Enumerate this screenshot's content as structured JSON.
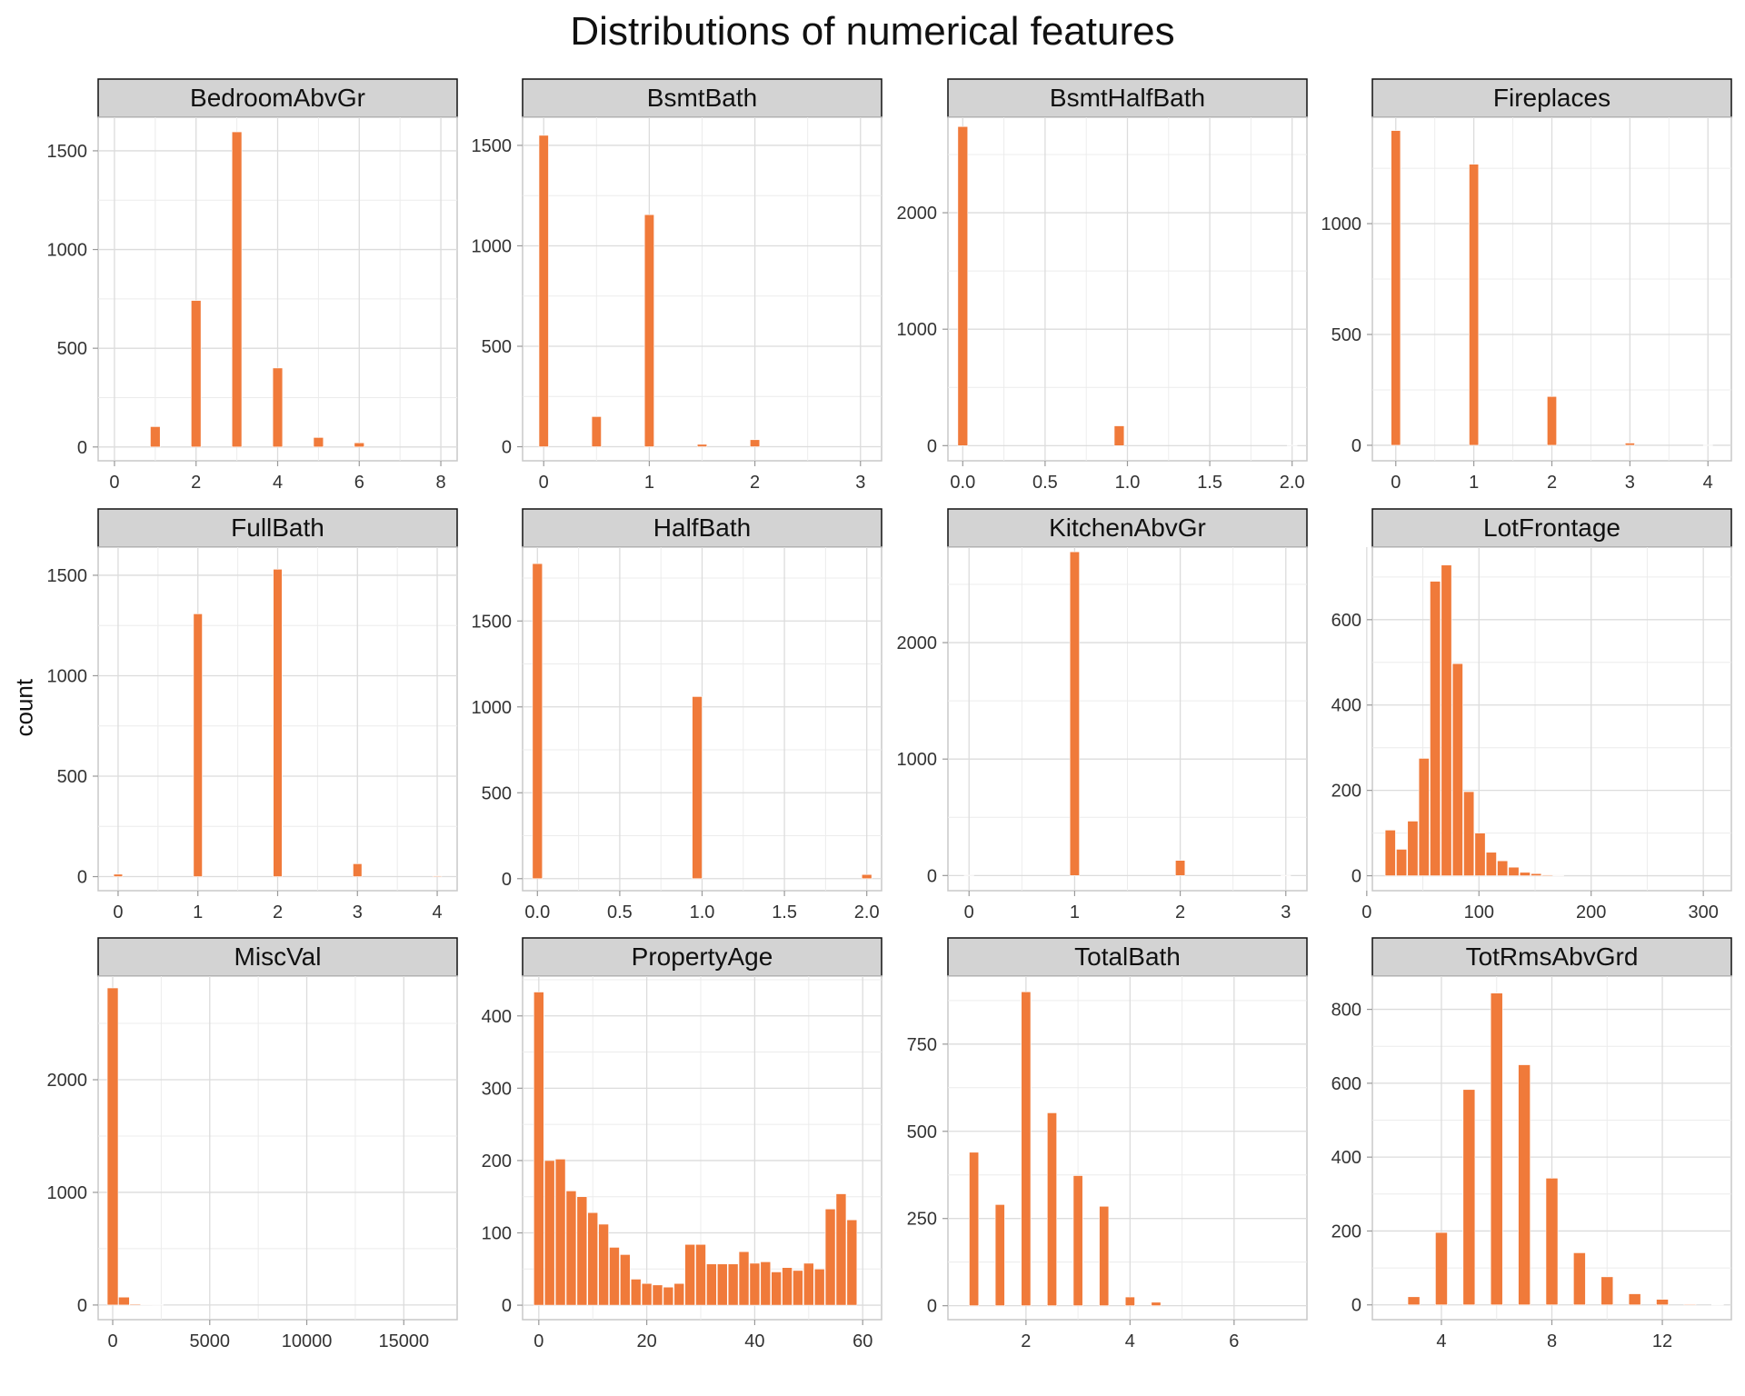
{
  "chart_data": {
    "type": "bar",
    "title": "Distributions of numerical features",
    "ylabel": "count",
    "color": "#f07a3a",
    "panels": [
      {
        "name": "BedroomAbvGr",
        "xlim": [
          -0.4,
          8.4
        ],
        "ylim": [
          -70,
          1670
        ],
        "xticks": [
          "0",
          "2",
          "4",
          "6",
          "8"
        ],
        "xtickvals": [
          0,
          2,
          4,
          6,
          8
        ],
        "yticks": [
          0,
          500,
          1000,
          1500
        ],
        "barwidth": 0.24,
        "bars": [
          {
            "x": 1,
            "y": 103
          },
          {
            "x": 2,
            "y": 742
          },
          {
            "x": 3,
            "y": 1596
          },
          {
            "x": 4,
            "y": 400
          },
          {
            "x": 5,
            "y": 48
          },
          {
            "x": 6,
            "y": 21
          }
        ]
      },
      {
        "name": "BsmtBath",
        "xlim": [
          -0.2,
          3.2
        ],
        "ylim": [
          -70,
          1640
        ],
        "xticks": [
          "0",
          "1",
          "2",
          "3"
        ],
        "xtickvals": [
          0,
          1,
          2,
          3
        ],
        "yticks": [
          0,
          500,
          1000,
          1500
        ],
        "barwidth": 0.09,
        "bars": [
          {
            "x": 0,
            "y": 1550
          },
          {
            "x": 0.5,
            "y": 150
          },
          {
            "x": 1,
            "y": 1155
          },
          {
            "x": 1.5,
            "y": 12
          },
          {
            "x": 2,
            "y": 35
          }
        ]
      },
      {
        "name": "BsmtHalfBath",
        "xlim": [
          -0.09,
          2.09
        ],
        "ylim": [
          -130,
          2820
        ],
        "xticks": [
          "0.0",
          "0.5",
          "1.0",
          "1.5",
          "2.0"
        ],
        "xtickvals": [
          0,
          0.5,
          1,
          1.5,
          2
        ],
        "yticks": [
          0,
          1000,
          2000
        ],
        "barwidth": 0.06,
        "bars": [
          {
            "x": 0,
            "y": 2740
          },
          {
            "x": 0.95,
            "y": 170
          },
          {
            "x": 2,
            "y": 4
          }
        ]
      },
      {
        "name": "Fireplaces",
        "xlim": [
          -0.3,
          4.3
        ],
        "ylim": [
          -70,
          1480
        ],
        "xticks": [
          "0",
          "1",
          "2",
          "3",
          "4"
        ],
        "xtickvals": [
          0,
          1,
          2,
          3,
          4
        ],
        "yticks": [
          0,
          500,
          1000
        ],
        "barwidth": 0.12,
        "bars": [
          {
            "x": 0,
            "y": 1420
          },
          {
            "x": 1,
            "y": 1268
          },
          {
            "x": 2,
            "y": 220
          },
          {
            "x": 3,
            "y": 10
          },
          {
            "x": 4,
            "y": 1
          }
        ]
      },
      {
        "name": "FullBath",
        "xlim": [
          -0.25,
          4.25
        ],
        "ylim": [
          -70,
          1640
        ],
        "xticks": [
          "0",
          "1",
          "2",
          "3",
          "4"
        ],
        "xtickvals": [
          0,
          1,
          2,
          3,
          4
        ],
        "yticks": [
          0,
          500,
          1000,
          1500
        ],
        "barwidth": 0.11,
        "bars": [
          {
            "x": 0,
            "y": 12
          },
          {
            "x": 1,
            "y": 1308
          },
          {
            "x": 2,
            "y": 1530
          },
          {
            "x": 3,
            "y": 64
          },
          {
            "x": 4,
            "y": 4
          }
        ]
      },
      {
        "name": "HalfBath",
        "xlim": [
          -0.09,
          2.09
        ],
        "ylim": [
          -70,
          1930
        ],
        "xticks": [
          "0.0",
          "0.5",
          "1.0",
          "1.5",
          "2.0"
        ],
        "xtickvals": [
          0,
          0.5,
          1,
          1.5,
          2
        ],
        "yticks": [
          0,
          500,
          1000,
          1500
        ],
        "barwidth": 0.06,
        "bars": [
          {
            "x": 0,
            "y": 1834
          },
          {
            "x": 0.97,
            "y": 1060
          },
          {
            "x": 2,
            "y": 24
          }
        ]
      },
      {
        "name": "KitchenAbvGr",
        "xlim": [
          -0.2,
          3.2
        ],
        "ylim": [
          -130,
          2820
        ],
        "xticks": [
          "0",
          "1",
          "2",
          "3"
        ],
        "xtickvals": [
          0,
          1,
          2,
          3
        ],
        "yticks": [
          0,
          1000,
          2000
        ],
        "barwidth": 0.09,
        "bars": [
          {
            "x": 0,
            "y": 3
          },
          {
            "x": 1,
            "y": 2780
          },
          {
            "x": 2,
            "y": 130
          },
          {
            "x": 3,
            "y": 2
          }
        ]
      },
      {
        "name": "LotFrontage",
        "xlim": [
          5,
          325
        ],
        "ylim": [
          -35,
          770
        ],
        "xticks": [
          "0",
          "100",
          "200",
          "300"
        ],
        "xtickvals": [
          0,
          100,
          200,
          300
        ],
        "yticks": [
          0,
          200,
          400,
          600
        ],
        "barwidth": 9.2,
        "bars": [
          {
            "x": 21,
            "y": 107
          },
          {
            "x": 31,
            "y": 62
          },
          {
            "x": 41,
            "y": 128
          },
          {
            "x": 51,
            "y": 275
          },
          {
            "x": 61,
            "y": 690
          },
          {
            "x": 71,
            "y": 728
          },
          {
            "x": 81,
            "y": 497
          },
          {
            "x": 91,
            "y": 197
          },
          {
            "x": 101,
            "y": 100
          },
          {
            "x": 111,
            "y": 55
          },
          {
            "x": 121,
            "y": 35
          },
          {
            "x": 131,
            "y": 20
          },
          {
            "x": 141,
            "y": 8
          },
          {
            "x": 151,
            "y": 5
          },
          {
            "x": 161,
            "y": 2
          },
          {
            "x": 171,
            "y": 1
          }
        ]
      },
      {
        "name": "MiscVal",
        "xlim": [
          -750,
          17750
        ],
        "ylim": [
          -130,
          2920
        ],
        "xticks": [
          "0",
          "5000",
          "10000",
          "15000"
        ],
        "xtickvals": [
          0,
          5000,
          10000,
          15000
        ],
        "yticks": [
          0,
          1000,
          2000
        ],
        "barwidth": 560,
        "bars": [
          {
            "x": 0,
            "y": 2815
          },
          {
            "x": 580,
            "y": 70
          },
          {
            "x": 1160,
            "y": 8
          },
          {
            "x": 1740,
            "y": 4
          },
          {
            "x": 2320,
            "y": 3
          }
        ]
      },
      {
        "name": "PropertyAge",
        "xlim": [
          -3,
          63.5
        ],
        "ylim": [
          -20,
          455
        ],
        "xticks": [
          "0",
          "20",
          "40",
          "60"
        ],
        "xtickvals": [
          0,
          20,
          40,
          60
        ],
        "yticks": [
          0,
          100,
          200,
          300,
          400
        ],
        "barwidth": 1.85,
        "bars": [
          {
            "x": 0,
            "y": 433
          },
          {
            "x": 2,
            "y": 200
          },
          {
            "x": 4,
            "y": 202
          },
          {
            "x": 6,
            "y": 158
          },
          {
            "x": 8,
            "y": 150
          },
          {
            "x": 10,
            "y": 128
          },
          {
            "x": 12,
            "y": 112
          },
          {
            "x": 14,
            "y": 80
          },
          {
            "x": 16,
            "y": 70
          },
          {
            "x": 18,
            "y": 36
          },
          {
            "x": 20,
            "y": 30
          },
          {
            "x": 22,
            "y": 28
          },
          {
            "x": 24,
            "y": 25
          },
          {
            "x": 26,
            "y": 30
          },
          {
            "x": 28,
            "y": 84
          },
          {
            "x": 30,
            "y": 84
          },
          {
            "x": 32,
            "y": 57
          },
          {
            "x": 34,
            "y": 57
          },
          {
            "x": 36,
            "y": 57
          },
          {
            "x": 38,
            "y": 74
          },
          {
            "x": 40,
            "y": 58
          },
          {
            "x": 42,
            "y": 60
          },
          {
            "x": 44,
            "y": 46
          },
          {
            "x": 46,
            "y": 52
          },
          {
            "x": 48,
            "y": 48
          },
          {
            "x": 50,
            "y": 58
          },
          {
            "x": 52,
            "y": 50
          },
          {
            "x": 54,
            "y": 133
          },
          {
            "x": 56,
            "y": 154
          },
          {
            "x": 58,
            "y": 118
          }
        ]
      },
      {
        "name": "TotalBath",
        "xlim": [
          0.5,
          7.4
        ],
        "ylim": [
          -40,
          945
        ],
        "xticks": [
          "2",
          "4",
          "6"
        ],
        "xtickvals": [
          2,
          4,
          6
        ],
        "yticks": [
          0,
          250,
          500,
          750
        ],
        "barwidth": 0.18,
        "bars": [
          {
            "x": 1,
            "y": 440
          },
          {
            "x": 1.5,
            "y": 290
          },
          {
            "x": 2,
            "y": 900
          },
          {
            "x": 2.5,
            "y": 553
          },
          {
            "x": 3,
            "y": 373
          },
          {
            "x": 3.5,
            "y": 285
          },
          {
            "x": 4,
            "y": 25
          },
          {
            "x": 4.5,
            "y": 10
          }
        ]
      },
      {
        "name": "TotRmsAbvGrd",
        "xlim": [
          1.5,
          14.5
        ],
        "ylim": [
          -40,
          890
        ],
        "xticks": [
          "4",
          "8",
          "12"
        ],
        "xtickvals": [
          4,
          8,
          12
        ],
        "yticks": [
          0,
          200,
          400,
          600,
          800
        ],
        "barwidth": 0.43,
        "bars": [
          {
            "x": 3,
            "y": 22
          },
          {
            "x": 4,
            "y": 196
          },
          {
            "x": 5,
            "y": 583
          },
          {
            "x": 6,
            "y": 844
          },
          {
            "x": 7,
            "y": 650
          },
          {
            "x": 8,
            "y": 343
          },
          {
            "x": 9,
            "y": 141
          },
          {
            "x": 10,
            "y": 76
          },
          {
            "x": 11,
            "y": 30
          },
          {
            "x": 12,
            "y": 15
          },
          {
            "x": 13,
            "y": 2
          },
          {
            "x": 14,
            "y": 1
          }
        ]
      }
    ]
  }
}
